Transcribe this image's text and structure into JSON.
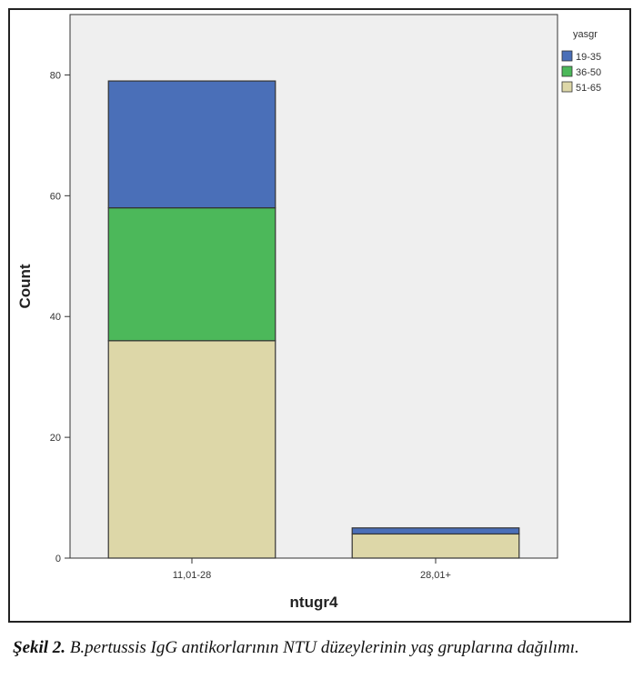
{
  "chart_data": {
    "type": "bar",
    "stacked": true,
    "xlabel": "ntugr4",
    "ylabel": "Count",
    "ylim": [
      0,
      90
    ],
    "yticks": [
      0,
      20,
      40,
      60,
      80
    ],
    "grid": false,
    "categories": [
      "11,01-28",
      "28,01+"
    ],
    "legend_title": "yasgr",
    "legend_position": "top-right",
    "series": [
      {
        "name": "51-65",
        "color": "#ddd7a8",
        "values": [
          36,
          4
        ]
      },
      {
        "name": "36-50",
        "color": "#4cb85a",
        "values": [
          22,
          0
        ]
      },
      {
        "name": "19-35",
        "color": "#4a6fb8",
        "values": [
          21,
          1
        ]
      }
    ]
  },
  "colors": {
    "plot_background": "#efefef",
    "bar_outline": "#333333"
  },
  "caption": {
    "label": "Şekil 2.",
    "text": "B.pertussis IgG antikorlarının NTU düzeylerinin yaş gruplarına dağılımı."
  }
}
